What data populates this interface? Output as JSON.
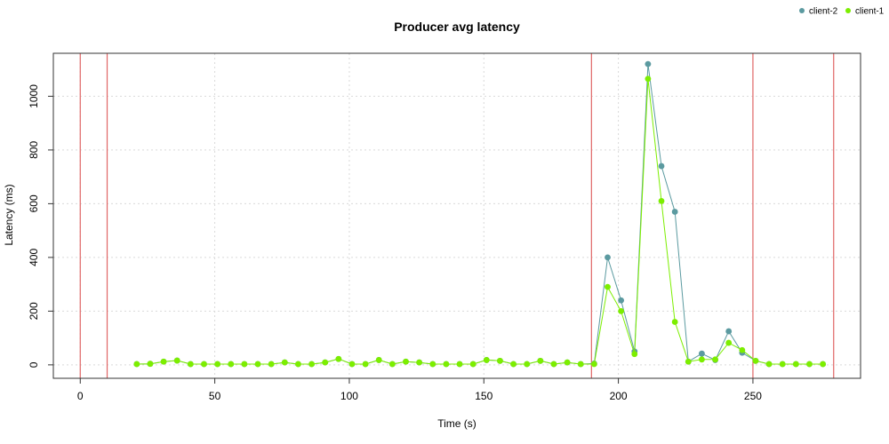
{
  "chart_data": {
    "type": "line",
    "title": "Producer avg latency",
    "xlabel": "Time (s)",
    "ylabel": "Latency (ms)",
    "xlim": [
      -10,
      290
    ],
    "ylim": [
      -50,
      1160
    ],
    "x_ticks": [
      0,
      50,
      100,
      150,
      200,
      250
    ],
    "y_ticks": [
      0,
      200,
      400,
      600,
      800,
      1000
    ],
    "grid": true,
    "legend_position": "top-right",
    "vertical_lines": [
      0,
      10,
      190,
      250,
      280
    ],
    "vertical_line_color": "#e06666",
    "series": [
      {
        "name": "client-2",
        "color": "#5b9aa0",
        "x": [
          21,
          26,
          31,
          36,
          41,
          46,
          51,
          56,
          61,
          66,
          71,
          76,
          81,
          86,
          91,
          96,
          101,
          106,
          111,
          116,
          121,
          126,
          131,
          136,
          141,
          146,
          151,
          156,
          161,
          166,
          171,
          176,
          181,
          186,
          191,
          196,
          201,
          206,
          211,
          216,
          221,
          226,
          231,
          236,
          241,
          246,
          251,
          256,
          261,
          266,
          271,
          276
        ],
        "values": [
          3,
          4,
          12,
          16,
          3,
          3,
          3,
          3,
          3,
          3,
          3,
          9,
          3,
          3,
          9,
          22,
          3,
          3,
          18,
          3,
          12,
          9,
          3,
          3,
          3,
          3,
          18,
          15,
          3,
          3,
          15,
          3,
          9,
          3,
          5,
          400,
          240,
          50,
          1120,
          740,
          570,
          12,
          42,
          18,
          125,
          45,
          15,
          3,
          3,
          3,
          3,
          3
        ]
      },
      {
        "name": "client-1",
        "color": "#7cee00",
        "x": [
          21,
          26,
          31,
          36,
          41,
          46,
          51,
          56,
          61,
          66,
          71,
          76,
          81,
          86,
          91,
          96,
          101,
          106,
          111,
          116,
          121,
          126,
          131,
          136,
          141,
          146,
          151,
          156,
          161,
          166,
          171,
          176,
          181,
          186,
          191,
          196,
          201,
          206,
          211,
          216,
          221,
          226,
          231,
          236,
          241,
          246,
          251,
          256,
          261,
          266,
          271,
          276
        ],
        "values": [
          3,
          4,
          12,
          16,
          3,
          3,
          3,
          3,
          3,
          3,
          3,
          9,
          3,
          3,
          9,
          22,
          3,
          3,
          18,
          3,
          12,
          9,
          3,
          3,
          3,
          3,
          18,
          15,
          3,
          3,
          15,
          3,
          9,
          3,
          3,
          290,
          200,
          40,
          1065,
          610,
          160,
          12,
          20,
          20,
          82,
          55,
          15,
          3,
          3,
          3,
          3,
          3
        ]
      }
    ]
  }
}
